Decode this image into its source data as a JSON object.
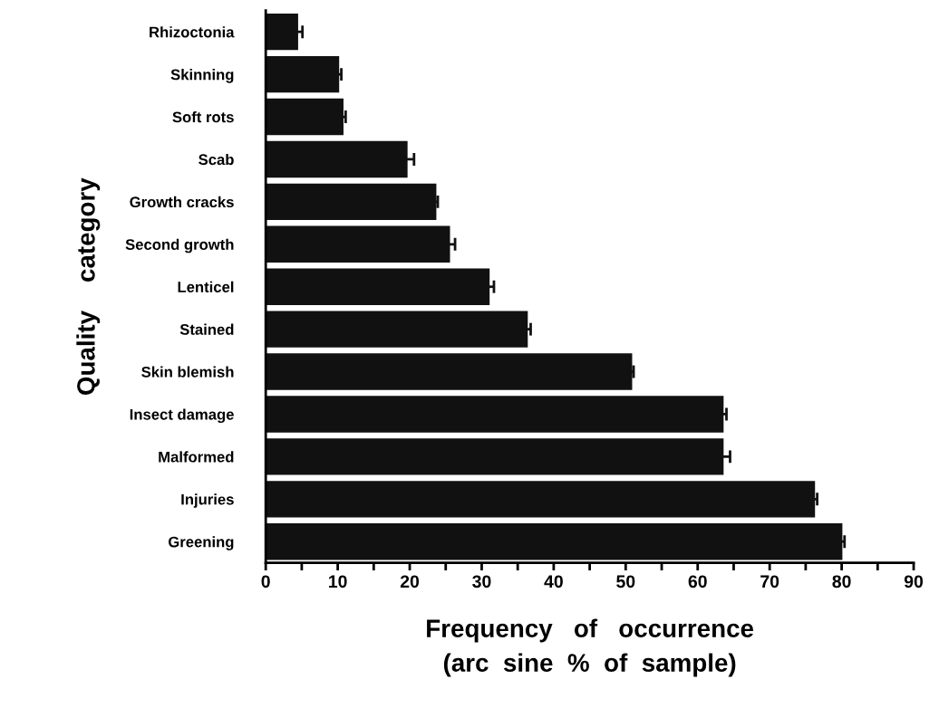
{
  "chart_data": {
    "type": "bar",
    "orientation": "horizontal",
    "categories": [
      "Rhizoctonia",
      "Skinning",
      "Soft rots",
      "Scab",
      "Growth cracks",
      "Second growth",
      "Lenticel",
      "Stained",
      "Skin blemish",
      "Insect damage",
      "Malformed",
      "Injuries",
      "Greening"
    ],
    "values": [
      4.5,
      10.2,
      10.8,
      19.7,
      23.7,
      25.6,
      31.1,
      36.4,
      50.9,
      63.6,
      63.6,
      76.3,
      80.1
    ],
    "errors": [
      0.6,
      0.3,
      0.3,
      0.9,
      0.2,
      0.7,
      0.6,
      0.4,
      0.2,
      0.4,
      0.9,
      0.3,
      0.3
    ],
    "color": "#111111",
    "xlim": [
      0,
      90
    ],
    "xticks": [
      0,
      {
        "value": 5,
        "label": null
      },
      10,
      {
        "value": 15,
        "label": null
      },
      20,
      {
        "value": 25,
        "label": null
      },
      30,
      {
        "value": 35,
        "label": null
      },
      40,
      {
        "value": 45,
        "label": null
      },
      50,
      {
        "value": 55,
        "label": null
      },
      60,
      {
        "value": 65,
        "label": null
      },
      70,
      {
        "value": 75,
        "label": null
      },
      80,
      {
        "value": 85,
        "label": null
      },
      90
    ],
    "xlabel": "Frequency   of   occurrence\n(arc  sine  %  of  sample)",
    "ylabel": "Quality    category",
    "grid": false,
    "legend": false
  }
}
